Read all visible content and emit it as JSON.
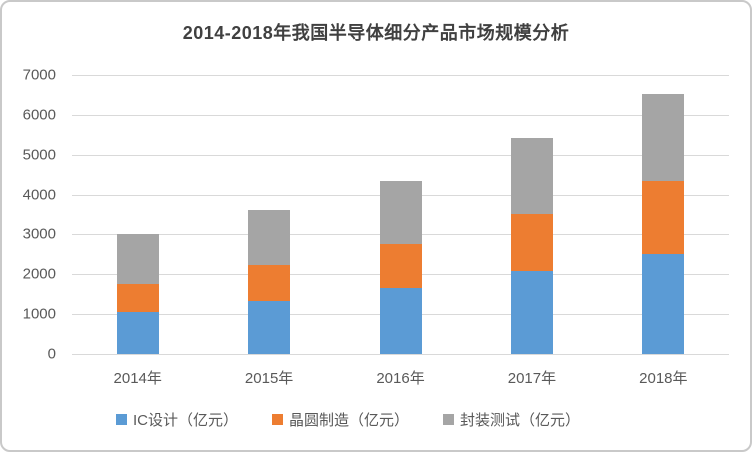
{
  "chart_data": {
    "type": "bar",
    "stacked": true,
    "title": "2014-2018年我国半导体细分产品市场规模分析",
    "categories": [
      "2014年",
      "2015年",
      "2016年",
      "2017年",
      "2018年"
    ],
    "series": [
      {
        "name": "IC设计（亿元）",
        "color": "#5B9BD5",
        "values": [
          1047,
          1325,
          1644,
          2074,
          2519
        ]
      },
      {
        "name": "晶圆制造（亿元）",
        "color": "#ED7D31",
        "values": [
          712,
          901,
          1127,
          1448,
          1818
        ]
      },
      {
        "name": "封装测试（亿元）",
        "color": "#A5A5A5",
        "values": [
          1256,
          1384,
          1564,
          1890,
          2194
        ]
      }
    ],
    "ylim": [
      0,
      7000
    ],
    "yticks": [
      0,
      1000,
      2000,
      3000,
      4000,
      5000,
      6000,
      7000
    ],
    "grid": true,
    "legend_position": "bottom"
  },
  "styles": {
    "grid_color": "#D9D9D9",
    "axis_text_color": "#595959",
    "title_color": "#404040",
    "card_border_color": "#C9C9C9",
    "background": "#FFFFFF"
  }
}
